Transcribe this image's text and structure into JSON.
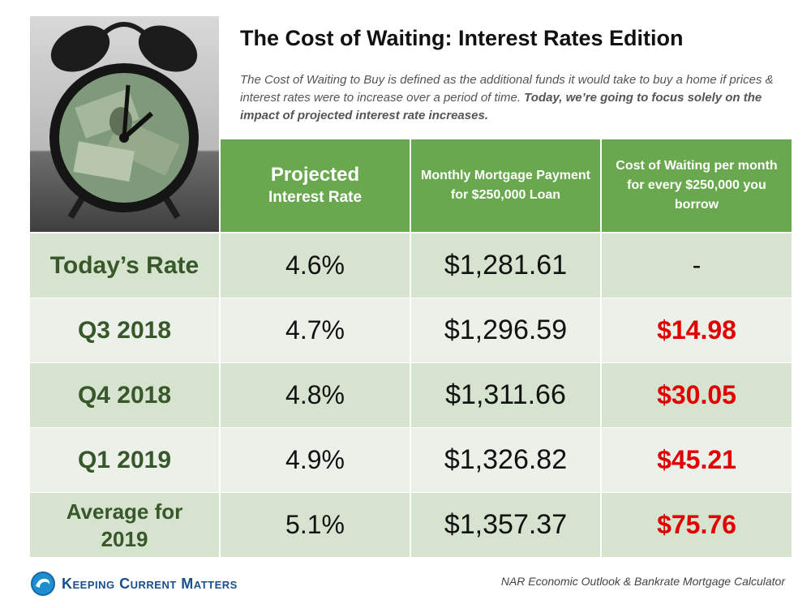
{
  "title": "The Cost of Waiting: Interest Rates Edition",
  "description": {
    "part1": "The Cost of Waiting to Buy is defined as the additional funds it would take to buy a home if prices & interest rates were to increase over a period of time. ",
    "part2": "Today, we’re going to focus solely on the impact of projected interest rate increases."
  },
  "table": {
    "headers": {
      "rate_line1": "Projected",
      "rate_line2": "Interest Rate",
      "payment": "Monthly Mortgage Payment for $250,000 Loan",
      "cost": "Cost of Waiting per month for every $250,000 you borrow"
    },
    "rows": [
      {
        "period": "Today’s Rate",
        "rate": "4.6%",
        "payment": "$1,281.61",
        "cost": "-"
      },
      {
        "period": "Q3 2018",
        "rate": "4.7%",
        "payment": "$1,296.59",
        "cost": "$14.98"
      },
      {
        "period": "Q4 2018",
        "rate": "4.8%",
        "payment": "$1,311.66",
        "cost": "$30.05"
      },
      {
        "period": "Q1 2019",
        "rate": "4.9%",
        "payment": "$1,326.82",
        "cost": "$45.21"
      },
      {
        "period": "Average for 2019",
        "rate": "5.1%",
        "payment": "$1,357.37",
        "cost": "$75.76"
      }
    ]
  },
  "footer": {
    "brand": "Keeping Current Matters",
    "source": "NAR Economic Outlook & Bankrate Mortgage Calculator"
  },
  "colors": {
    "header_green": "#6aa84f",
    "period_text": "#38572b",
    "cost_red": "#e00000",
    "row_shade": "#d6e3cf",
    "row_light": "#ebf1e8"
  },
  "icons": {
    "photo": "alarm-clock-with-money-photo",
    "logo": "wave-swirl-logo-icon"
  }
}
